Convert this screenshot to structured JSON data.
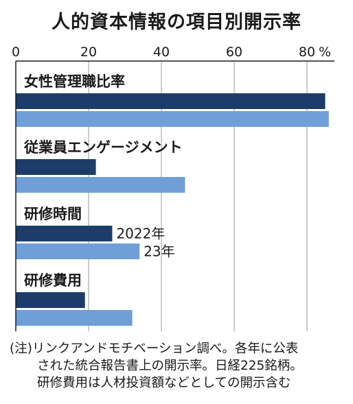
{
  "chart_data": {
    "type": "bar",
    "orientation": "horizontal",
    "title": "人的資本情報の項目別開示率",
    "x_ticks": [
      "0",
      "20",
      "40",
      "60",
      "80"
    ],
    "x_unit": "%",
    "xlim": [
      0,
      85
    ],
    "grid": true,
    "categories": [
      "女性管理職比率",
      "従業員エンゲージメント",
      "研修時間",
      "研修費用"
    ],
    "series": [
      {
        "name": "2022年",
        "color": "#1d3c68",
        "values": [
          85.0,
          22.0,
          26.5,
          19.0
        ]
      },
      {
        "name": "23年",
        "color": "#6f9fd6",
        "values": [
          86.0,
          46.5,
          34.0,
          32.0
        ]
      }
    ]
  },
  "note": {
    "line1": "(注)リンクアンドモチベーション調べ。各年に公表",
    "line2": "された統合報告書上の開示率。日経225銘柄。",
    "line3": "研修費用は人材投資額などとしての開示含む"
  }
}
